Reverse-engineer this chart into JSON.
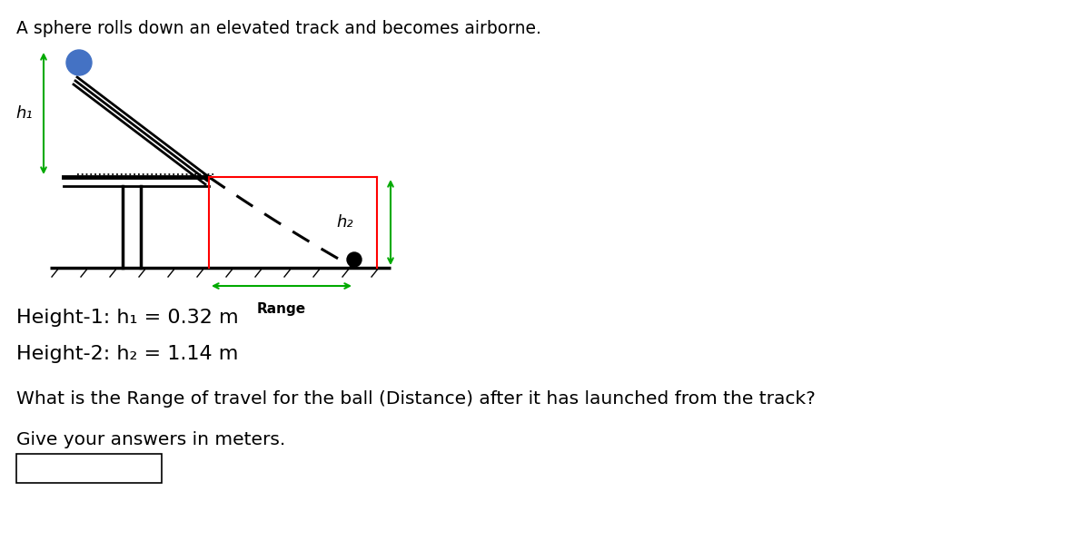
{
  "title": "A sphere rolls down an elevated track and becomes airborne.",
  "title_fontsize": 13.5,
  "h1_label": "h₁",
  "h2_label": "h₂",
  "range_label": "Range",
  "height1_text": "Height-1: h₁ = 0.32 m",
  "height2_text": "Height-2: h₂ = 1.14 m",
  "question_text": "What is the Range of travel for the ball (Distance) after it has launched from the track?",
  "answer_text": "Give your answers in meters.",
  "bg_color": "#ffffff",
  "ball_color": "#4472C4",
  "arrow_green": "#00aa00",
  "arrow_red": "#ff0000"
}
